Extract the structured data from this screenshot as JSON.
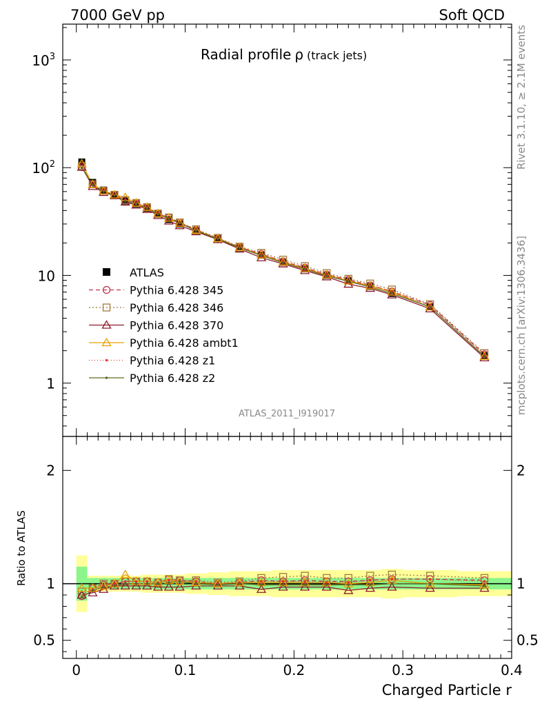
{
  "header": {
    "left": "7000 GeV pp",
    "right": "Soft QCD"
  },
  "side": {
    "rivet": "Rivet 3.1.10, ≥ 2.1M events",
    "mcplots": "mcplots.cern.ch [arXiv:1306.3436]"
  },
  "chart_data": [
    {
      "type": "line",
      "panel": "main",
      "title": "Radial profile",
      "title_symbol": "ρ",
      "title_suffix": "(track jets)",
      "watermark": "ATLAS_2011_I919017",
      "yscale": "log",
      "xlim": [
        -0.0125,
        0.4
      ],
      "ylim": [
        0.32,
        2150
      ],
      "x": [
        0.005,
        0.015,
        0.025,
        0.035,
        0.045,
        0.055,
        0.065,
        0.075,
        0.085,
        0.095,
        0.11,
        0.13,
        0.15,
        0.17,
        0.19,
        0.21,
        0.23,
        0.25,
        0.27,
        0.29,
        0.325,
        0.375
      ],
      "yticks": [
        {
          "value": 1,
          "base": "1",
          "exp": ""
        },
        {
          "value": 10,
          "base": "10",
          "exp": ""
        },
        {
          "value": 100,
          "base": "10",
          "exp": "2"
        },
        {
          "value": 1000,
          "base": "10",
          "exp": "3"
        }
      ],
      "legend_position": "middle-left",
      "series": [
        {
          "name": "ATLAS",
          "color": "#000000",
          "marker": "square-filled",
          "dash": "none",
          "values": [
            113,
            73,
            62,
            56,
            49,
            46,
            42,
            37,
            33,
            30,
            26,
            22,
            18,
            15.4,
            13.2,
            11.5,
            10,
            8.9,
            7.9,
            6.8,
            5.1,
            1.8
          ]
        },
        {
          "name": "Pythia 6.428 345",
          "color": "#c0304a",
          "marker": "circle-open",
          "dash": "6,4",
          "values": [
            101,
            70,
            61,
            56,
            50,
            47,
            43,
            37.5,
            34.5,
            31,
            26.5,
            22,
            18.3,
            15.8,
            13.5,
            11.8,
            10.2,
            9.1,
            8.1,
            7.1,
            5.3,
            1.85
          ]
        },
        {
          "name": "Pythia 6.428 346",
          "color": "#a07a3c",
          "marker": "square-open",
          "dash": "2,3",
          "values": [
            104,
            70,
            61,
            56,
            50,
            47,
            43,
            37.5,
            34.5,
            31,
            26.8,
            22.3,
            18.5,
            16.2,
            14,
            12.2,
            10.5,
            9.3,
            8.4,
            7.4,
            5.4,
            1.9
          ]
        },
        {
          "name": "Pythia 6.428 370",
          "color": "#8b1a2b",
          "marker": "triangle-open",
          "dash": "none",
          "values": [
            101,
            67,
            59,
            55,
            48,
            45,
            41,
            36,
            32,
            29,
            25.5,
            21.5,
            17.6,
            14.6,
            12.8,
            11.1,
            9.7,
            8.3,
            7.6,
            6.6,
            4.9,
            1.72
          ]
        },
        {
          "name": "Pythia 6.428 ambt1",
          "color": "#e8a000",
          "marker": "triangle-open",
          "dash": "none",
          "values": [
            109,
            70,
            61,
            56,
            53,
            47,
            43,
            37.5,
            34,
            30.5,
            26.2,
            22,
            18.2,
            15.5,
            13.3,
            11.6,
            10.1,
            8.9,
            8,
            7,
            5.1,
            1.78
          ]
        },
        {
          "name": "Pythia 6.428 z1",
          "color": "#e03030",
          "marker": "dot",
          "dash": "1,3",
          "values": [
            100,
            69,
            61,
            56,
            50,
            47,
            43,
            37.5,
            34,
            31,
            26.4,
            22,
            18.2,
            15.7,
            13.5,
            11.7,
            10.1,
            9,
            8.1,
            7.1,
            5.3,
            1.84
          ]
        },
        {
          "name": "Pythia 6.428 z2",
          "color": "#5c6b22",
          "marker": "dot",
          "dash": "none",
          "values": [
            100,
            69,
            60,
            55,
            49,
            46,
            42,
            37,
            33.5,
            30.5,
            26,
            21.8,
            18,
            15.3,
            13.1,
            11.4,
            9.9,
            8.8,
            7.8,
            6.8,
            5.1,
            1.77
          ]
        }
      ]
    },
    {
      "type": "line",
      "panel": "ratio",
      "ylabel": "Ratio to ATLAS",
      "xlabel": "Charged Particle r",
      "xlim": [
        -0.0125,
        0.4
      ],
      "ylim": [
        0.34,
        2.3
      ],
      "xticks": [
        0,
        0.1,
        0.2,
        0.3,
        0.4
      ],
      "xtick_labels": [
        "0",
        "0.1",
        "0.2",
        "0.3",
        "0.4"
      ],
      "yticks": [
        0.5,
        1,
        2
      ],
      "ytick_labels": [
        "0.5",
        "1",
        "2"
      ],
      "band_edges": [
        0,
        0.01,
        0.02,
        0.03,
        0.04,
        0.05,
        0.06,
        0.07,
        0.08,
        0.09,
        0.1,
        0.12,
        0.14,
        0.16,
        0.18,
        0.2,
        0.22,
        0.24,
        0.26,
        0.28,
        0.3,
        0.35,
        0.4
      ],
      "stat_band": [
        0.15,
        0.05,
        0.05,
        0.05,
        0.05,
        0.05,
        0.05,
        0.05,
        0.05,
        0.05,
        0.05,
        0.05,
        0.05,
        0.05,
        0.05,
        0.05,
        0.05,
        0.05,
        0.05,
        0.05,
        0.05,
        0.05
      ],
      "total_band": [
        0.25,
        0.07,
        0.07,
        0.07,
        0.07,
        0.07,
        0.08,
        0.08,
        0.08,
        0.08,
        0.09,
        0.1,
        0.11,
        0.11,
        0.12,
        0.12,
        0.12,
        0.12,
        0.12,
        0.13,
        0.12,
        0.11
      ],
      "stat_color": "#8cf58c",
      "total_color": "#ffff99",
      "series": [
        {
          "name": "Pythia 6.428 345",
          "values": [
            0.89,
            0.96,
            0.99,
            1.0,
            1.02,
            1.02,
            1.02,
            1.01,
            1.04,
            1.03,
            1.02,
            1.0,
            1.01,
            1.03,
            1.02,
            1.03,
            1.02,
            1.02,
            1.03,
            1.04,
            1.04,
            1.03
          ]
        },
        {
          "name": "Pythia 6.428 346",
          "values": [
            0.93,
            0.96,
            1.0,
            1.0,
            1.02,
            1.02,
            1.02,
            1.01,
            1.04,
            1.03,
            1.03,
            1.01,
            1.02,
            1.05,
            1.06,
            1.07,
            1.05,
            1.05,
            1.07,
            1.08,
            1.07,
            1.05
          ]
        },
        {
          "name": "Pythia 6.428 370",
          "values": [
            0.9,
            0.92,
            0.95,
            0.98,
            0.98,
            0.98,
            0.98,
            0.97,
            0.97,
            0.97,
            0.98,
            0.98,
            0.98,
            0.95,
            0.97,
            0.97,
            0.97,
            0.94,
            0.96,
            0.97,
            0.96,
            0.96
          ]
        },
        {
          "name": "Pythia 6.428 ambt1",
          "values": [
            0.96,
            0.96,
            0.98,
            1.0,
            1.08,
            1.02,
            1.02,
            1.01,
            1.03,
            1.02,
            1.01,
            1.0,
            1.01,
            1.01,
            1.01,
            1.01,
            1.01,
            1.0,
            1.01,
            1.03,
            1.0,
            0.99
          ]
        },
        {
          "name": "Pythia 6.428 z1",
          "values": [
            0.88,
            0.95,
            0.98,
            1.0,
            1.02,
            1.02,
            1.02,
            1.01,
            1.03,
            1.03,
            1.02,
            1.0,
            1.01,
            1.02,
            1.02,
            1.02,
            1.01,
            1.01,
            1.03,
            1.04,
            1.04,
            1.02
          ]
        },
        {
          "name": "Pythia 6.428 z2",
          "values": [
            0.88,
            0.94,
            0.97,
            0.98,
            1.0,
            1.0,
            1.0,
            1.0,
            1.01,
            1.02,
            1.0,
            0.99,
            1.0,
            0.99,
            0.99,
            0.99,
            0.99,
            0.99,
            0.99,
            1.0,
            1.0,
            0.98
          ]
        }
      ]
    }
  ]
}
